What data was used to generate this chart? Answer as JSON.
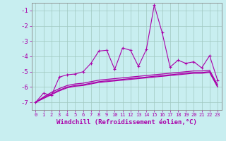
{
  "background_color": "#c8eef0",
  "grid_color": "#a0c8c0",
  "line_color": "#aa00aa",
  "xlabel": "Windchill (Refroidissement éolien,°C)",
  "xlim": [
    -0.5,
    23.5
  ],
  "ylim": [
    -7.5,
    -0.5
  ],
  "yticks": [
    -7,
    -6,
    -5,
    -4,
    -3,
    -2,
    -1
  ],
  "xticks": [
    0,
    1,
    2,
    3,
    4,
    5,
    6,
    7,
    8,
    9,
    10,
    11,
    12,
    13,
    14,
    15,
    16,
    17,
    18,
    19,
    20,
    21,
    22,
    23
  ],
  "series1_x": [
    0,
    1,
    2,
    3,
    4,
    5,
    6,
    7,
    8,
    9,
    10,
    11,
    12,
    13,
    14,
    15,
    16,
    17,
    18,
    19,
    20,
    21,
    22,
    23
  ],
  "series1_y": [
    -7.0,
    -6.4,
    -6.55,
    -5.35,
    -5.2,
    -5.15,
    -5.0,
    -4.45,
    -3.65,
    -3.6,
    -4.85,
    -3.45,
    -3.6,
    -4.65,
    -3.55,
    -0.65,
    -2.45,
    -4.7,
    -4.25,
    -4.45,
    -4.35,
    -4.75,
    -3.95,
    -5.55
  ],
  "series2_x": [
    0,
    1,
    2,
    3,
    4,
    5,
    6,
    7,
    8,
    9,
    10,
    11,
    12,
    13,
    14,
    15,
    16,
    17,
    18,
    19,
    20,
    21,
    22,
    23
  ],
  "series2_y": [
    -7.0,
    -6.65,
    -6.35,
    -6.1,
    -5.9,
    -5.8,
    -5.75,
    -5.65,
    -5.55,
    -5.5,
    -5.45,
    -5.4,
    -5.35,
    -5.3,
    -5.25,
    -5.2,
    -5.15,
    -5.1,
    -5.05,
    -5.0,
    -4.95,
    -4.95,
    -4.9,
    -5.85
  ],
  "series3_x": [
    0,
    1,
    2,
    3,
    4,
    5,
    6,
    7,
    8,
    9,
    10,
    11,
    12,
    13,
    14,
    15,
    16,
    17,
    18,
    19,
    20,
    21,
    22,
    23
  ],
  "series3_y": [
    -7.0,
    -6.7,
    -6.45,
    -6.2,
    -6.0,
    -5.9,
    -5.85,
    -5.75,
    -5.65,
    -5.6,
    -5.55,
    -5.5,
    -5.45,
    -5.4,
    -5.35,
    -5.3,
    -5.25,
    -5.2,
    -5.15,
    -5.1,
    -5.05,
    -5.05,
    -5.0,
    -5.95
  ],
  "series4_x": [
    0,
    1,
    2,
    3,
    4,
    5,
    6,
    7,
    8,
    9,
    10,
    11,
    12,
    13,
    14,
    15,
    16,
    17,
    18,
    19,
    20,
    21,
    22,
    23
  ],
  "series4_y": [
    -7.0,
    -6.75,
    -6.5,
    -6.25,
    -6.05,
    -5.95,
    -5.9,
    -5.8,
    -5.7,
    -5.65,
    -5.6,
    -5.55,
    -5.5,
    -5.45,
    -5.4,
    -5.35,
    -5.3,
    -5.25,
    -5.2,
    -5.15,
    -5.1,
    -5.1,
    -5.05,
    -6.0
  ]
}
